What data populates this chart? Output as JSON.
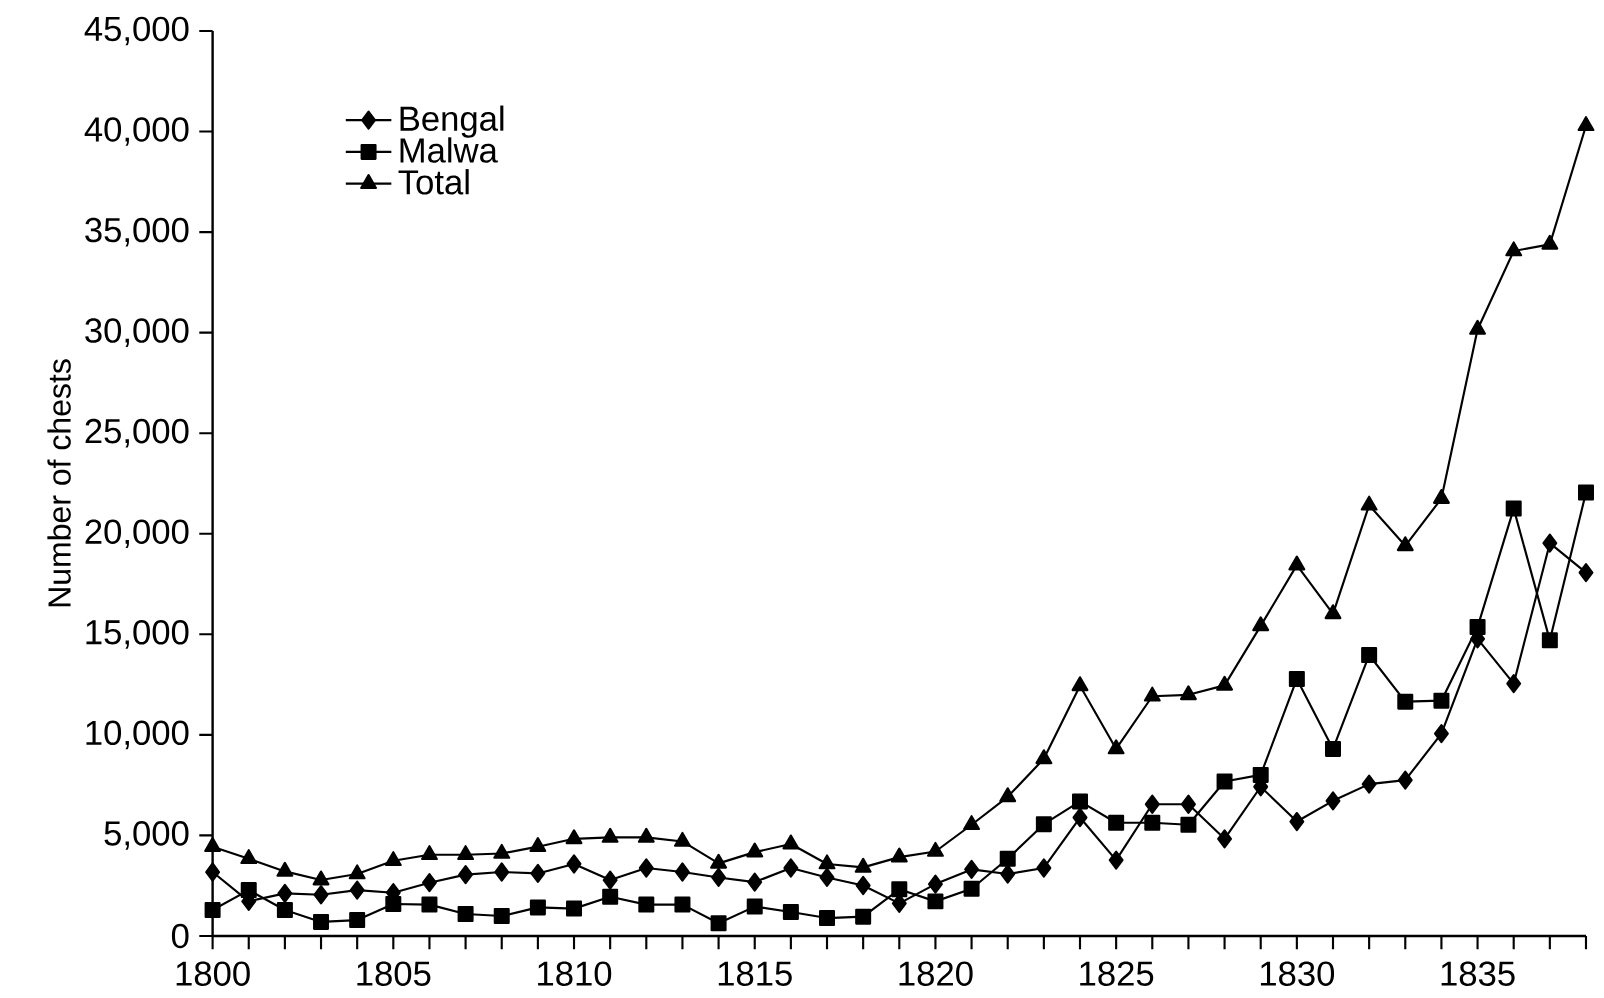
{
  "chart_data": {
    "type": "line",
    "ylabel": "Number of chests",
    "x": [
      1800,
      1801,
      1802,
      1803,
      1804,
      1805,
      1806,
      1807,
      1808,
      1809,
      1810,
      1811,
      1812,
      1813,
      1814,
      1815,
      1816,
      1817,
      1818,
      1819,
      1820,
      1821,
      1822,
      1823,
      1824,
      1825,
      1826,
      1827,
      1828,
      1829,
      1830,
      1831,
      1832,
      1833,
      1834,
      1835,
      1836,
      1837,
      1838
    ],
    "series": [
      {
        "name": "Bengal",
        "color": "#000000",
        "marker": "diamond",
        "values": [
          3180,
          1720,
          2120,
          2050,
          2280,
          2150,
          2650,
          3050,
          3180,
          3110,
          3580,
          2780,
          3380,
          3180,
          2910,
          2680,
          3380,
          2910,
          2510,
          1620,
          2580,
          3310,
          3080,
          3380,
          5890,
          3770,
          6550,
          6550,
          4830,
          7420,
          5690,
          6720,
          7550,
          7750,
          10060,
          14770,
          12550,
          19530,
          18070
        ]
      },
      {
        "name": "Malwa",
        "color": "#000000",
        "marker": "square",
        "values": [
          1290,
          2280,
          1290,
          700,
          790,
          1590,
          1560,
          1090,
          990,
          1420,
          1360,
          1950,
          1560,
          1560,
          630,
          1460,
          1190,
          890,
          960,
          2320,
          1720,
          2350,
          3840,
          5560,
          6690,
          5630,
          5630,
          5530,
          7680,
          8010,
          12780,
          9300,
          13970,
          11650,
          11700,
          15360,
          21250,
          14700,
          22050
        ]
      },
      {
        "name": "Total",
        "color": "#000000",
        "marker": "triangle",
        "values": [
          4440,
          3840,
          3210,
          2780,
          3080,
          3740,
          4040,
          4040,
          4100,
          4440,
          4830,
          4900,
          4900,
          4700,
          3610,
          4170,
          4570,
          3580,
          3410,
          3920,
          4200,
          5530,
          6920,
          8810,
          12440,
          9300,
          11920,
          11990,
          12460,
          15420,
          18440,
          16020,
          21420,
          19400,
          21750,
          30160,
          34060,
          34390,
          40290
        ]
      }
    ],
    "xlim": [
      1800,
      1838
    ],
    "xticks": [
      1800,
      {
        "value": 1801,
        "label": null
      },
      {
        "value": 1802,
        "label": null
      },
      {
        "value": 1803,
        "label": null
      },
      {
        "value": 1804,
        "label": null
      },
      1805,
      {
        "value": 1806,
        "label": null
      },
      {
        "value": 1807,
        "label": null
      },
      {
        "value": 1808,
        "label": null
      },
      {
        "value": 1809,
        "label": null
      },
      1810,
      {
        "value": 1811,
        "label": null
      },
      {
        "value": 1812,
        "label": null
      },
      {
        "value": 1813,
        "label": null
      },
      {
        "value": 1814,
        "label": null
      },
      1815,
      {
        "value": 1816,
        "label": null
      },
      {
        "value": 1817,
        "label": null
      },
      {
        "value": 1818,
        "label": null
      },
      {
        "value": 1819,
        "label": null
      },
      1820,
      {
        "value": 1821,
        "label": null
      },
      {
        "value": 1822,
        "label": null
      },
      {
        "value": 1823,
        "label": null
      },
      {
        "value": 1824,
        "label": null
      },
      1825,
      {
        "value": 1826,
        "label": null
      },
      {
        "value": 1827,
        "label": null
      },
      {
        "value": 1828,
        "label": null
      },
      {
        "value": 1829,
        "label": null
      },
      1830,
      {
        "value": 1831,
        "label": null
      },
      {
        "value": 1832,
        "label": null
      },
      {
        "value": 1833,
        "label": null
      },
      {
        "value": 1834,
        "label": null
      },
      1835,
      {
        "value": 1836,
        "label": null
      },
      {
        "value": 1837,
        "label": null
      },
      {
        "value": 1838,
        "label": null
      }
    ],
    "ylim": [
      0,
      45000
    ],
    "yticks": [
      0,
      {
        "value": 5000,
        "label": "5,000"
      },
      {
        "value": 10000,
        "label": "10,000"
      },
      {
        "value": 15000,
        "label": "15,000"
      },
      {
        "value": 20000,
        "label": "20,000"
      },
      {
        "value": 25000,
        "label": "25,000"
      },
      {
        "value": 30000,
        "label": "30,000"
      },
      {
        "value": 35000,
        "label": "35,000"
      },
      {
        "value": 40000,
        "label": "40,000"
      },
      {
        "value": 45000,
        "label": "45,000"
      }
    ],
    "grid": false,
    "legend": "top left",
    "line_style": "solid"
  }
}
